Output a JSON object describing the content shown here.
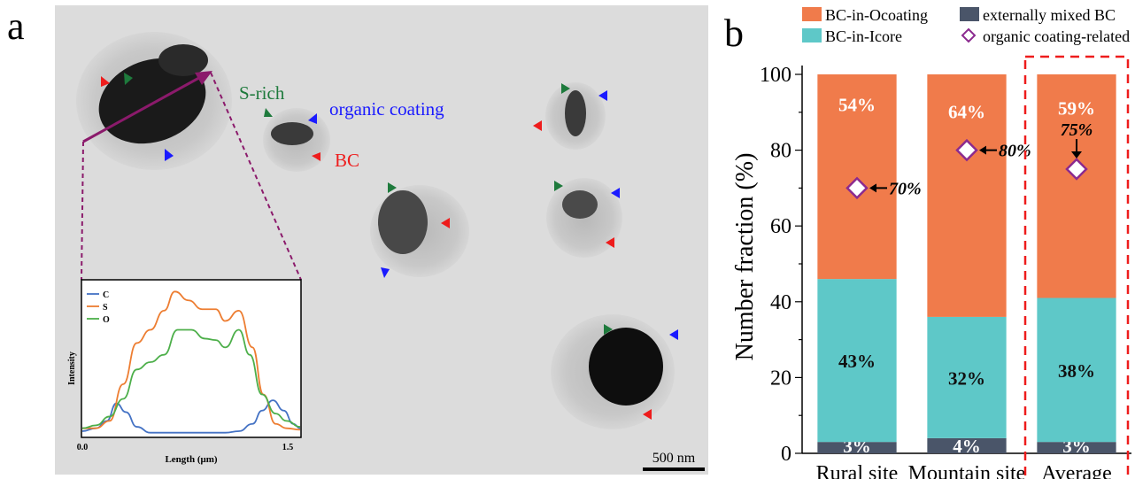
{
  "panel_a": {
    "letter": "a",
    "labels": {
      "s_rich": "S-rich",
      "organic_coating": "organic coating",
      "bc": "BC"
    },
    "scale_bar": "500 nm",
    "colors": {
      "s_rich": "#1e7a3c",
      "organic_coating": "#1a1aff",
      "bc": "#ee1c1c",
      "line_scan": "#8b1a6b"
    },
    "inset": {
      "xlabel": "Length (μm)",
      "ylabel": "Intensity",
      "x_ticks": [
        "0.0",
        "1.5"
      ],
      "xlim": [
        0,
        1.6
      ],
      "series": [
        {
          "name": "C",
          "color": "#4472c4",
          "x": [
            0,
            0.1,
            0.18,
            0.25,
            0.32,
            0.4,
            0.5,
            0.65,
            0.8,
            0.95,
            1.05,
            1.15,
            1.25,
            1.32,
            1.4,
            1.48,
            1.55,
            1.6
          ],
          "y": [
            0.03,
            0.05,
            0.1,
            0.22,
            0.16,
            0.06,
            0.02,
            0.02,
            0.02,
            0.02,
            0.02,
            0.03,
            0.08,
            0.17,
            0.24,
            0.17,
            0.08,
            0.05
          ]
        },
        {
          "name": "S",
          "color": "#ed7d31",
          "x": [
            0,
            0.1,
            0.2,
            0.3,
            0.4,
            0.5,
            0.6,
            0.68,
            0.78,
            0.88,
            0.98,
            1.05,
            1.15,
            1.25,
            1.33,
            1.42,
            1.5,
            1.6
          ],
          "y": [
            0.05,
            0.05,
            0.1,
            0.35,
            0.63,
            0.72,
            0.85,
            0.98,
            0.92,
            0.86,
            0.86,
            0.78,
            0.85,
            0.6,
            0.28,
            0.08,
            0.05,
            0.04
          ]
        },
        {
          "name": "O",
          "color": "#4daf4a",
          "x": [
            0,
            0.1,
            0.2,
            0.3,
            0.4,
            0.5,
            0.6,
            0.7,
            0.8,
            0.9,
            0.98,
            1.05,
            1.15,
            1.23,
            1.32,
            1.42,
            1.5,
            1.6
          ],
          "y": [
            0.05,
            0.07,
            0.13,
            0.25,
            0.45,
            0.5,
            0.55,
            0.72,
            0.72,
            0.66,
            0.65,
            0.6,
            0.72,
            0.55,
            0.28,
            0.15,
            0.1,
            0.06
          ]
        }
      ]
    }
  },
  "chart_data": {
    "panel_letter": "b",
    "type": "bar",
    "stacked": true,
    "categories": [
      "Rural site",
      "Mountain site",
      "Average"
    ],
    "ylabel": "Number fraction (%)",
    "ylim": [
      0,
      100
    ],
    "yticks": [
      0,
      20,
      40,
      60,
      80,
      100
    ],
    "series": [
      {
        "name": "externally mixed BC",
        "color": "#4a5569",
        "values": [
          3,
          4,
          3
        ],
        "labels": [
          "3%",
          "4%",
          "3%"
        ]
      },
      {
        "name": "BC-in-Icore",
        "color": "#5ec8c8",
        "values": [
          43,
          32,
          38
        ],
        "labels": [
          "43%",
          "32%",
          "38%"
        ]
      },
      {
        "name": "BC-in-Ocoating",
        "color": "#f07b4b",
        "values": [
          54,
          64,
          59
        ],
        "labels": [
          "54%",
          "64%",
          "59%"
        ]
      }
    ],
    "overlay": {
      "name": "organic coating-related",
      "type": "scatter",
      "marker": "diamond",
      "color": "#8b2a8f",
      "values": [
        70,
        80,
        75
      ],
      "labels": [
        "70%",
        "80%",
        "75%"
      ]
    },
    "legend_order": [
      "BC-in-Ocoating",
      "externally mixed BC",
      "BC-in-Icore",
      "organic coating-related"
    ],
    "legend_position": "top",
    "highlight_box": {
      "category": "Average",
      "color": "#ee1c1c",
      "style": "dashed"
    }
  }
}
